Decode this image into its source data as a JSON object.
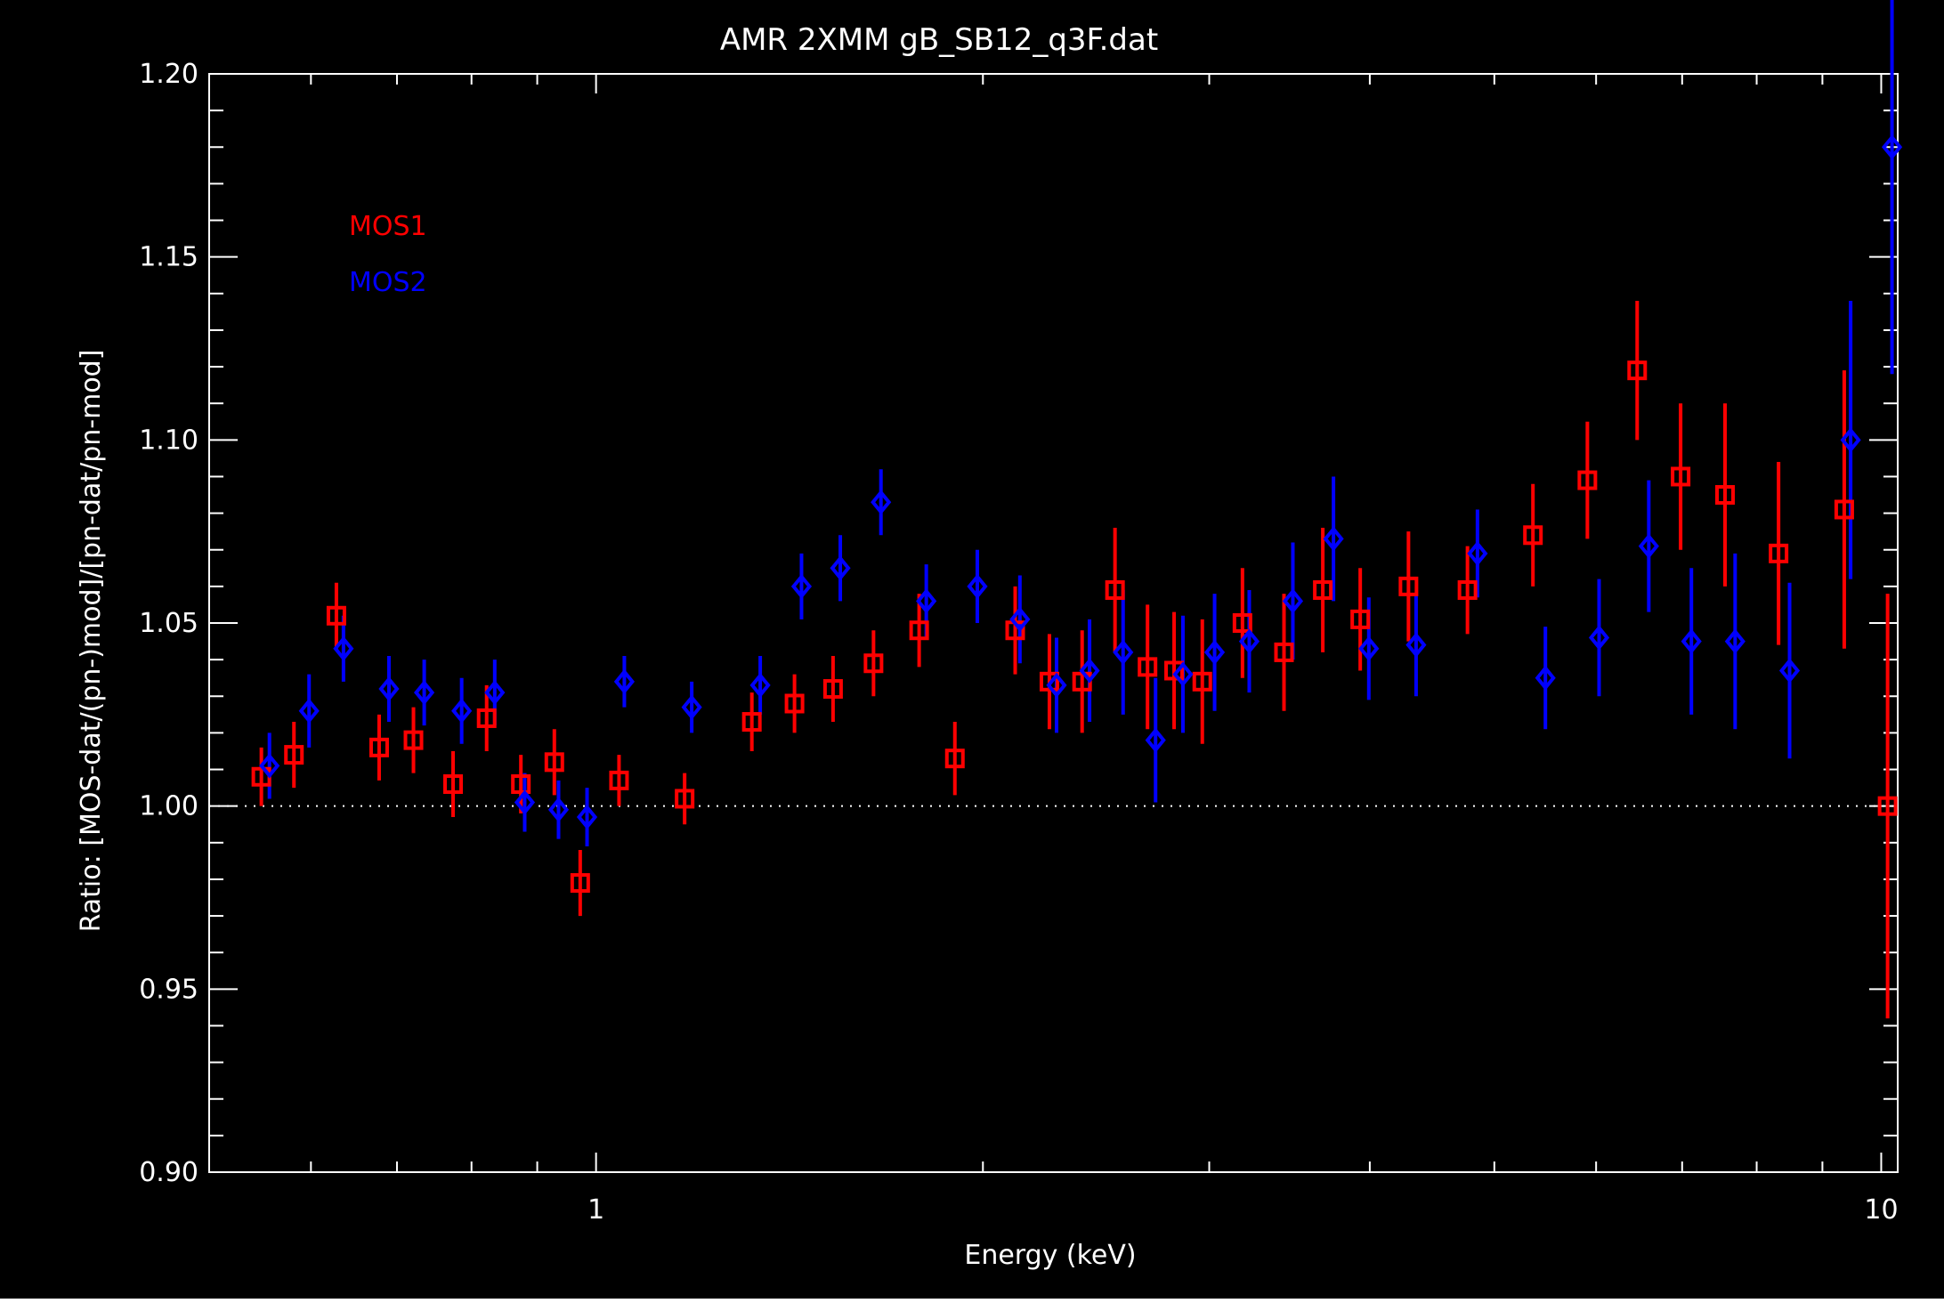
{
  "chart_data": {
    "type": "scatter",
    "title": "AMR 2XMM gB_SB12_q3F.dat",
    "xlabel": "Energy (keV)",
    "ylabel": "Ratio: [MOS-dat/(pn-)mod]/[pn-dat/pn-mod]",
    "xscale": "log",
    "xlim": [
      0.5,
      10.3
    ],
    "ylim": [
      0.9,
      1.2
    ],
    "grid": false,
    "reference_line": 1.0,
    "x_tick_labels": [
      "1",
      "10"
    ],
    "y_tick_labels": [
      "0.90",
      "0.95",
      "1.00",
      "1.05",
      "1.10",
      "1.15",
      "1.20"
    ],
    "colors": {
      "background": "#000000",
      "axes": "#ffffff",
      "MOS1": "#ff0000",
      "MOS2": "#0000ff"
    },
    "legend": {
      "placement": "top-left",
      "entries": [
        "MOS1",
        "MOS2"
      ]
    },
    "series": [
      {
        "name": "MOS1",
        "marker": "square",
        "color": "#ff0000",
        "points": [
          {
            "x": 0.549,
            "y": 1.008,
            "err": 0.008
          },
          {
            "x": 0.582,
            "y": 1.014,
            "err": 0.009
          },
          {
            "x": 0.628,
            "y": 1.052,
            "err": 0.009
          },
          {
            "x": 0.678,
            "y": 1.016,
            "err": 0.009
          },
          {
            "x": 0.721,
            "y": 1.018,
            "err": 0.009
          },
          {
            "x": 0.774,
            "y": 1.006,
            "err": 0.009
          },
          {
            "x": 0.822,
            "y": 1.024,
            "err": 0.009
          },
          {
            "x": 0.874,
            "y": 1.006,
            "err": 0.008
          },
          {
            "x": 0.928,
            "y": 1.012,
            "err": 0.009
          },
          {
            "x": 0.972,
            "y": 0.979,
            "err": 0.009
          },
          {
            "x": 1.042,
            "y": 1.007,
            "err": 0.007
          },
          {
            "x": 1.172,
            "y": 1.002,
            "err": 0.007
          },
          {
            "x": 1.322,
            "y": 1.023,
            "err": 0.008
          },
          {
            "x": 1.427,
            "y": 1.028,
            "err": 0.008
          },
          {
            "x": 1.529,
            "y": 1.032,
            "err": 0.009
          },
          {
            "x": 1.644,
            "y": 1.039,
            "err": 0.009
          },
          {
            "x": 1.784,
            "y": 1.048,
            "err": 0.01
          },
          {
            "x": 1.902,
            "y": 1.013,
            "err": 0.01
          },
          {
            "x": 2.119,
            "y": 1.048,
            "err": 0.012
          },
          {
            "x": 2.253,
            "y": 1.034,
            "err": 0.013
          },
          {
            "x": 2.389,
            "y": 1.034,
            "err": 0.014
          },
          {
            "x": 2.534,
            "y": 1.059,
            "err": 0.017
          },
          {
            "x": 2.686,
            "y": 1.038,
            "err": 0.017
          },
          {
            "x": 2.817,
            "y": 1.037,
            "err": 0.016
          },
          {
            "x": 2.963,
            "y": 1.034,
            "err": 0.017
          },
          {
            "x": 3.184,
            "y": 1.05,
            "err": 0.015
          },
          {
            "x": 3.43,
            "y": 1.042,
            "err": 0.016
          },
          {
            "x": 3.677,
            "y": 1.059,
            "err": 0.017
          },
          {
            "x": 3.932,
            "y": 1.051,
            "err": 0.014
          },
          {
            "x": 4.287,
            "y": 1.06,
            "err": 0.015
          },
          {
            "x": 4.765,
            "y": 1.059,
            "err": 0.012
          },
          {
            "x": 5.358,
            "y": 1.074,
            "err": 0.014
          },
          {
            "x": 5.907,
            "y": 1.089,
            "err": 0.016
          },
          {
            "x": 6.458,
            "y": 1.119,
            "err": 0.019
          },
          {
            "x": 6.981,
            "y": 1.09,
            "err": 0.02
          },
          {
            "x": 7.559,
            "y": 1.085,
            "err": 0.025
          },
          {
            "x": 8.32,
            "y": 1.069,
            "err": 0.025
          },
          {
            "x": 9.359,
            "y": 1.081,
            "err": 0.038
          },
          {
            "x": 10.115,
            "y": 1.0,
            "err": 0.058
          }
        ]
      },
      {
        "name": "MOS2",
        "marker": "diamond",
        "color": "#0000ff",
        "points": [
          {
            "x": 0.557,
            "y": 1.011,
            "err": 0.009
          },
          {
            "x": 0.598,
            "y": 1.026,
            "err": 0.01
          },
          {
            "x": 0.636,
            "y": 1.043,
            "err": 0.009
          },
          {
            "x": 0.69,
            "y": 1.032,
            "err": 0.009
          },
          {
            "x": 0.735,
            "y": 1.031,
            "err": 0.009
          },
          {
            "x": 0.786,
            "y": 1.026,
            "err": 0.009
          },
          {
            "x": 0.834,
            "y": 1.031,
            "err": 0.009
          },
          {
            "x": 0.88,
            "y": 1.001,
            "err": 0.008
          },
          {
            "x": 0.935,
            "y": 0.999,
            "err": 0.008
          },
          {
            "x": 0.984,
            "y": 0.997,
            "err": 0.008
          },
          {
            "x": 1.052,
            "y": 1.034,
            "err": 0.007
          },
          {
            "x": 1.187,
            "y": 1.027,
            "err": 0.007
          },
          {
            "x": 1.342,
            "y": 1.033,
            "err": 0.008
          },
          {
            "x": 1.445,
            "y": 1.06,
            "err": 0.009
          },
          {
            "x": 1.549,
            "y": 1.065,
            "err": 0.009
          },
          {
            "x": 1.666,
            "y": 1.083,
            "err": 0.009
          },
          {
            "x": 1.807,
            "y": 1.056,
            "err": 0.01
          },
          {
            "x": 1.98,
            "y": 1.06,
            "err": 0.01
          },
          {
            "x": 2.137,
            "y": 1.051,
            "err": 0.012
          },
          {
            "x": 2.282,
            "y": 1.033,
            "err": 0.013
          },
          {
            "x": 2.421,
            "y": 1.037,
            "err": 0.014
          },
          {
            "x": 2.571,
            "y": 1.042,
            "err": 0.017
          },
          {
            "x": 2.725,
            "y": 1.018,
            "err": 0.017
          },
          {
            "x": 2.862,
            "y": 1.036,
            "err": 0.016
          },
          {
            "x": 3.029,
            "y": 1.042,
            "err": 0.016
          },
          {
            "x": 3.223,
            "y": 1.045,
            "err": 0.014
          },
          {
            "x": 3.485,
            "y": 1.056,
            "err": 0.016
          },
          {
            "x": 3.748,
            "y": 1.073,
            "err": 0.017
          },
          {
            "x": 3.993,
            "y": 1.043,
            "err": 0.014
          },
          {
            "x": 4.346,
            "y": 1.044,
            "err": 0.014
          },
          {
            "x": 4.851,
            "y": 1.069,
            "err": 0.012
          },
          {
            "x": 5.479,
            "y": 1.035,
            "err": 0.014
          },
          {
            "x": 6.032,
            "y": 1.046,
            "err": 0.016
          },
          {
            "x": 6.594,
            "y": 1.071,
            "err": 0.018
          },
          {
            "x": 7.117,
            "y": 1.045,
            "err": 0.02
          },
          {
            "x": 7.697,
            "y": 1.045,
            "err": 0.024
          },
          {
            "x": 8.486,
            "y": 1.037,
            "err": 0.024
          },
          {
            "x": 9.467,
            "y": 1.1,
            "err": 0.038
          },
          {
            "x": 10.195,
            "y": 1.18,
            "err": 0.062
          }
        ]
      }
    ]
  }
}
